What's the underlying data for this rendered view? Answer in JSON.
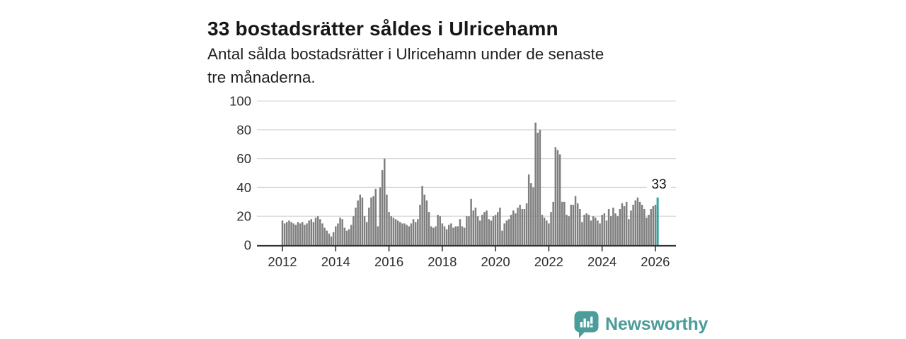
{
  "header": {
    "title": "33 bostadsrätter såldes i Ulricehamn",
    "subtitle_lines": [
      "Antal sålda bostadsrätter i Ulricehamn under de senaste",
      "tre månaderna."
    ]
  },
  "chart_data": {
    "type": "bar",
    "title": "33 bostadsrätter såldes i Ulricehamn",
    "subtitle": "Antal sålda bostadsrätter i Ulricehamn under de senaste tre månaderna.",
    "xlabel": "",
    "ylabel": "",
    "frequency": "monthly",
    "x_start": "2012-01",
    "x_end": "2026-02",
    "ylim": [
      0,
      100
    ],
    "yticks": [
      0,
      20,
      40,
      60,
      80,
      100
    ],
    "xticks": [
      "2012",
      "2014",
      "2016",
      "2018",
      "2020",
      "2022",
      "2024",
      "2026"
    ],
    "grid": true,
    "legend": false,
    "series": [
      {
        "name": "Antal sålda bostadsrätter",
        "values": [
          17,
          15,
          16,
          17,
          16,
          15,
          14,
          16,
          15,
          16,
          14,
          15,
          17,
          18,
          16,
          19,
          20,
          18,
          15,
          12,
          10,
          8,
          6,
          9,
          13,
          15,
          19,
          18,
          12,
          10,
          11,
          14,
          20,
          26,
          31,
          35,
          33,
          20,
          16,
          26,
          33,
          34,
          39,
          13,
          40,
          52,
          60,
          35,
          23,
          20,
          19,
          18,
          17,
          16,
          15,
          15,
          14,
          13,
          15,
          18,
          16,
          18,
          28,
          41,
          35,
          31,
          23,
          13,
          12,
          13,
          21,
          20,
          15,
          13,
          11,
          14,
          15,
          12,
          13,
          13,
          18,
          13,
          12,
          20,
          20,
          32,
          24,
          26,
          20,
          17,
          21,
          23,
          24,
          18,
          17,
          20,
          21,
          23,
          26,
          10,
          15,
          17,
          18,
          21,
          24,
          22,
          26,
          28,
          25,
          25,
          29,
          49,
          43,
          40,
          85,
          78,
          80,
          21,
          19,
          17,
          15,
          23,
          30,
          68,
          66,
          63,
          30,
          30,
          21,
          20,
          28,
          28,
          34,
          29,
          25,
          16,
          21,
          22,
          21,
          17,
          20,
          19,
          17,
          15,
          21,
          22,
          17,
          25,
          20,
          26,
          22,
          20,
          25,
          29,
          27,
          30,
          18,
          24,
          28,
          31,
          33,
          30,
          28,
          25,
          19,
          21,
          25,
          27,
          28,
          33
        ]
      }
    ],
    "highlight_index": 169,
    "annotation": {
      "label": "33",
      "value": 33
    },
    "colors": {
      "bar": "#7f7f7f",
      "highlight": "#2ba6a0",
      "grid": "#d9d9d9",
      "axis": "#333333",
      "tick_label": "#2e2e2e"
    }
  },
  "footer": {
    "brand": "Newsworthy",
    "brand_color": "#4a9d9a"
  }
}
